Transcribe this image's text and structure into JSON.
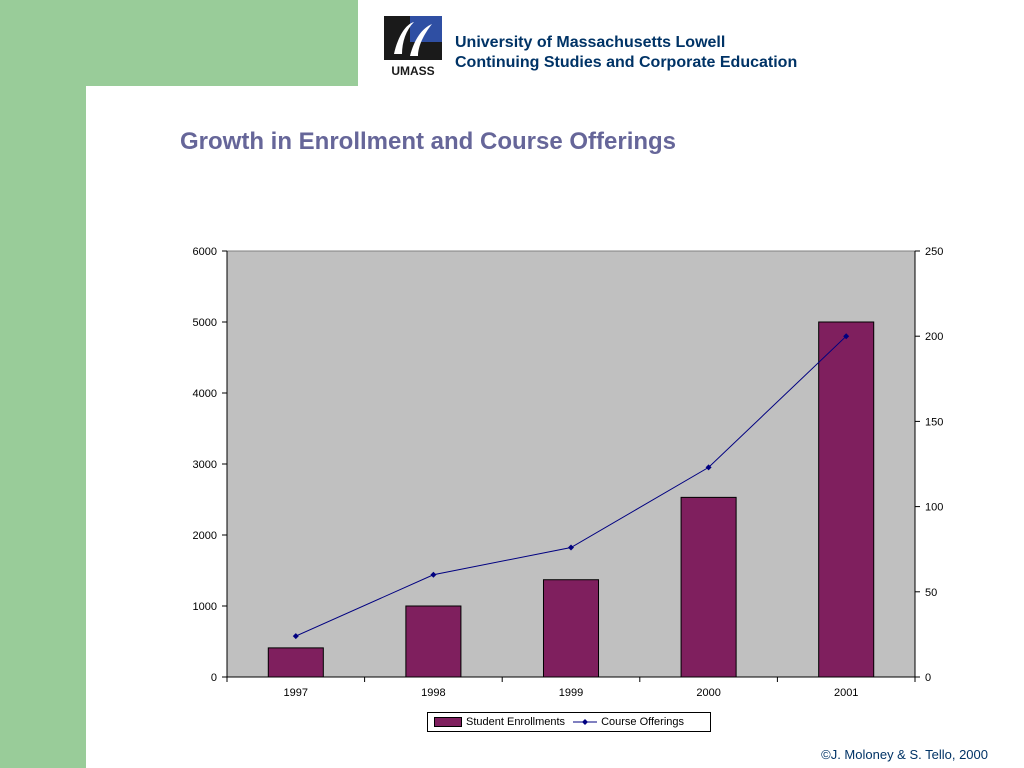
{
  "header": {
    "logo_text": "UMASS",
    "line1": "University of Massachusetts Lowell",
    "line2": "Continuing Studies and Corporate Education"
  },
  "title": "Growth in Enrollment and Course Offerings",
  "footer": "©J. Moloney & S. Tello, 2000",
  "colors": {
    "band": "#99cc99",
    "plot_bg": "#c0c0c0",
    "bar": "#7f1f5e",
    "line": "#000080",
    "title": "#666699",
    "header": "#003366"
  },
  "chart_data": {
    "type": "bar",
    "categories": [
      "1997",
      "1998",
      "1999",
      "2000",
      "2001"
    ],
    "series": [
      {
        "name": "Student Enrollments",
        "type": "bar",
        "axis": "left",
        "values": [
          410,
          1000,
          1370,
          2530,
          5000
        ]
      },
      {
        "name": "Course Offerings",
        "type": "line",
        "axis": "right",
        "values": [
          24,
          60,
          76,
          123,
          200
        ]
      }
    ],
    "y_left": {
      "ylim": [
        0,
        6000
      ],
      "ticks": [
        0,
        1000,
        2000,
        3000,
        4000,
        5000,
        6000
      ]
    },
    "y_right": {
      "ylim": [
        0,
        250
      ],
      "ticks": [
        0,
        50,
        100,
        150,
        200,
        250
      ]
    },
    "grid": false,
    "legend": "bottom"
  }
}
